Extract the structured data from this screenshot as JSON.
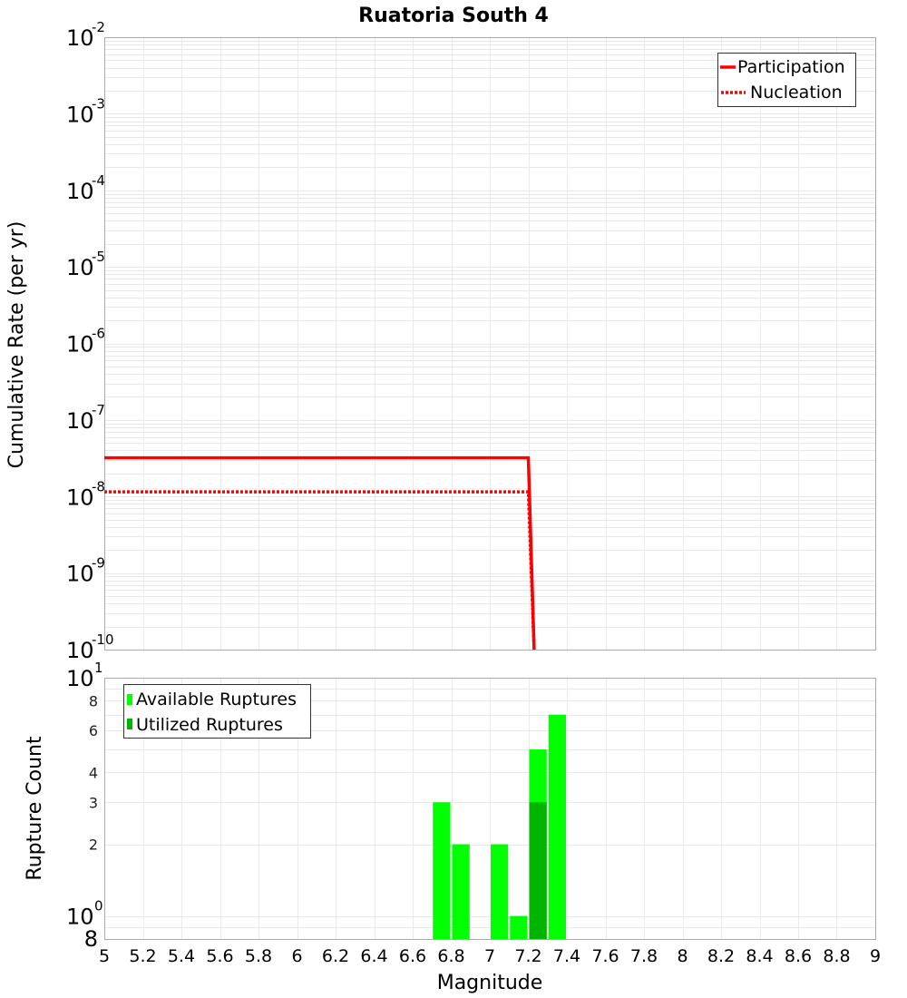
{
  "chart_data": [
    {
      "type": "line",
      "title": "Ruatoria South 4",
      "xlabel": "Magnitude",
      "ylabel": "Cumulative Rate (per yr)",
      "yscale": "log",
      "xlim": [
        5,
        9
      ],
      "ylim": [
        1e-10,
        0.01
      ],
      "grid": true,
      "legend_position": "upper right",
      "y_ticks": [
        "10^-2",
        "10^-3",
        "10^-4",
        "10^-5",
        "10^-6",
        "10^-7",
        "10^-8",
        "10^-9",
        "10^-10"
      ],
      "series": [
        {
          "name": "Participation",
          "style": "solid",
          "color": "#ff0000",
          "x": [
            5.0,
            7.2,
            7.23
          ],
          "y": [
            3.2e-08,
            3.2e-08,
            1e-10
          ]
        },
        {
          "name": "Nucleation",
          "style": "dotted",
          "color": "#ff0000",
          "x": [
            5.0,
            7.2,
            7.23
          ],
          "y": [
            1.15e-08,
            1.15e-08,
            1e-10
          ]
        }
      ]
    },
    {
      "type": "bar",
      "xlabel": "Magnitude",
      "ylabel": "Rupture Count",
      "yscale": "log",
      "xlim": [
        5,
        9
      ],
      "ylim": [
        0.8,
        10
      ],
      "grid": true,
      "legend_position": "upper left",
      "x_ticks": [
        "5",
        "5.2",
        "5.4",
        "5.6",
        "5.8",
        "6",
        "6.2",
        "6.4",
        "6.6",
        "6.8",
        "7",
        "7.2",
        "7.4",
        "7.6",
        "7.8",
        "8",
        "8.2",
        "8.4",
        "8.6",
        "8.8",
        "9"
      ],
      "y_ticks": [
        "10^1",
        "8",
        "6",
        "4",
        "3",
        "2",
        "10^0",
        "8"
      ],
      "categories": [
        6.75,
        6.85,
        7.05,
        7.15,
        7.25,
        7.35
      ],
      "series": [
        {
          "name": "Available Ruptures",
          "color": "#00ff00",
          "values": [
            3,
            2,
            2,
            1,
            5,
            7
          ]
        },
        {
          "name": "Utilized Ruptures",
          "color": "#00b400",
          "values": [
            0,
            0,
            0,
            0,
            3,
            0
          ]
        }
      ]
    }
  ],
  "labels": {
    "title": "Ruatoria South 4",
    "top_ylabel": "Cumulative Rate (per yr)",
    "bottom_ylabel": "Rupture Count",
    "xlabel": "Magnitude",
    "legend_top": [
      "Participation",
      "Nucleation"
    ],
    "legend_bottom": [
      "Available Ruptures",
      "Utilized Ruptures"
    ]
  }
}
